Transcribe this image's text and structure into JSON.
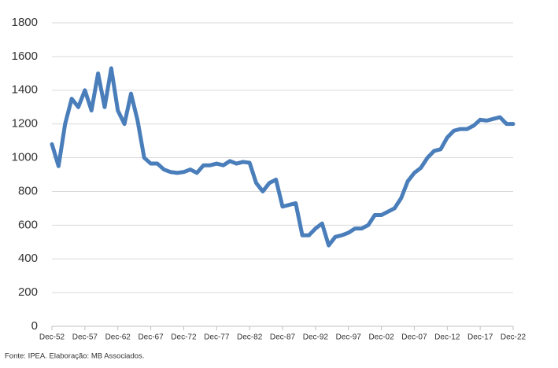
{
  "chart_data": {
    "type": "line",
    "categories": [
      "Dec-52",
      null,
      null,
      null,
      null,
      "Dec-57",
      null,
      null,
      null,
      null,
      "Dec-62",
      null,
      null,
      null,
      null,
      "Dec-67",
      null,
      null,
      null,
      null,
      "Dec-72",
      null,
      null,
      null,
      null,
      "Dec-77",
      null,
      null,
      null,
      null,
      "Dec-82",
      null,
      null,
      null,
      null,
      "Dec-87",
      null,
      null,
      null,
      null,
      "Dec-92",
      null,
      null,
      null,
      null,
      "Dec-97",
      null,
      null,
      null,
      null,
      "Dec-02",
      null,
      null,
      null,
      null,
      "Dec-07",
      null,
      null,
      null,
      null,
      "Dec-12",
      null,
      null,
      null,
      null,
      "Dec-17",
      null,
      null,
      null,
      null,
      "Dec-22"
    ],
    "values": [
      1080,
      950,
      1200,
      1350,
      1300,
      1400,
      1280,
      1500,
      1300,
      1530,
      1280,
      1200,
      1380,
      1220,
      1000,
      965,
      965,
      930,
      915,
      910,
      915,
      930,
      910,
      955,
      955,
      965,
      955,
      980,
      965,
      975,
      970,
      850,
      800,
      850,
      870,
      710,
      720,
      730,
      540,
      540,
      580,
      610,
      480,
      530,
      540,
      555,
      580,
      580,
      600,
      660,
      660,
      680,
      700,
      760,
      860,
      910,
      940,
      1000,
      1040,
      1050,
      1120,
      1160,
      1170,
      1170,
      1190,
      1225,
      1220,
      1230,
      1240,
      1200,
      1200
    ],
    "color": "#4a7ebb",
    "ylim": [
      0,
      1800
    ],
    "yticks": [
      0,
      200,
      400,
      600,
      800,
      1000,
      1200,
      1400,
      1600,
      1800
    ],
    "grid": true,
    "source": "Fonte: IPEA. Elaboração: MB Associados."
  }
}
